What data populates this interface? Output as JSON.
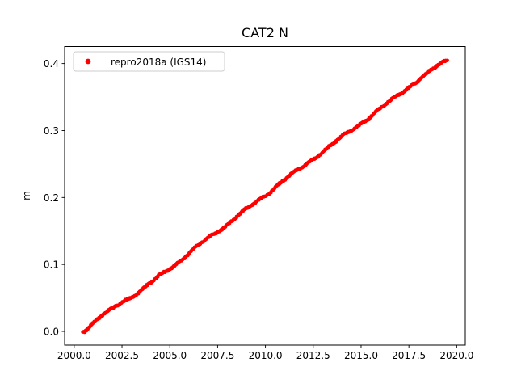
{
  "figure": {
    "background": "#ffffff",
    "plot_border_color": "#000000"
  },
  "chart_data": {
    "type": "scatter",
    "title": "CAT2 N",
    "xlabel": "",
    "ylabel": "m",
    "xlim": [
      1999.5,
      2020.45
    ],
    "ylim": [
      -0.0205,
      0.4255
    ],
    "x_ticks": [
      2000.0,
      2002.5,
      2005.0,
      2007.5,
      2010.0,
      2012.5,
      2015.0,
      2017.5,
      2020.0
    ],
    "x_tick_labels": [
      "2000.0",
      "2002.5",
      "2005.0",
      "2007.5",
      "2010.0",
      "2012.5",
      "2015.0",
      "2017.5",
      "2020.0"
    ],
    "y_ticks": [
      0.0,
      0.1,
      0.2,
      0.3,
      0.4
    ],
    "y_tick_labels": [
      "0.0",
      "0.1",
      "0.2",
      "0.3",
      "0.4"
    ],
    "grid": false,
    "legend": {
      "position": "upper left",
      "entries": [
        {
          "label": "repro2018a (IGS14)",
          "marker": "dot",
          "color": "#ff0000"
        }
      ]
    },
    "series": [
      {
        "name": "repro2018a (IGS14)",
        "color": "#ff0000",
        "marker": "dot",
        "marker_px": 4,
        "trend_m_per_year": 0.0213,
        "points": [
          [
            2000.45,
            0.0
          ],
          [
            2001.0,
            0.013
          ],
          [
            2001.5,
            0.0245
          ],
          [
            2002.0,
            0.033
          ],
          [
            2002.5,
            0.0445
          ],
          [
            2003.0,
            0.052
          ],
          [
            2003.5,
            0.0615
          ],
          [
            2004.0,
            0.072
          ],
          [
            2004.5,
            0.0835
          ],
          [
            2005.0,
            0.094
          ],
          [
            2005.5,
            0.105
          ],
          [
            2006.0,
            0.117
          ],
          [
            2006.5,
            0.128
          ],
          [
            2007.0,
            0.139
          ],
          [
            2007.5,
            0.1495
          ],
          [
            2008.0,
            0.16
          ],
          [
            2008.5,
            0.1715
          ],
          [
            2009.0,
            0.182
          ],
          [
            2009.5,
            0.1925
          ],
          [
            2010.0,
            0.2035
          ],
          [
            2010.5,
            0.2155
          ],
          [
            2011.0,
            0.227
          ],
          [
            2011.5,
            0.2365
          ],
          [
            2012.0,
            0.2465
          ],
          [
            2012.5,
            0.258
          ],
          [
            2013.0,
            0.269
          ],
          [
            2013.5,
            0.2795
          ],
          [
            2014.0,
            0.29
          ],
          [
            2014.5,
            0.3005
          ],
          [
            2015.0,
            0.311
          ],
          [
            2015.5,
            0.3215
          ],
          [
            2016.0,
            0.332
          ],
          [
            2016.5,
            0.343
          ],
          [
            2017.0,
            0.3545
          ],
          [
            2017.5,
            0.365
          ],
          [
            2018.0,
            0.3755
          ],
          [
            2018.5,
            0.3855
          ],
          [
            2019.0,
            0.3965
          ],
          [
            2019.5,
            0.405
          ]
        ]
      }
    ]
  }
}
